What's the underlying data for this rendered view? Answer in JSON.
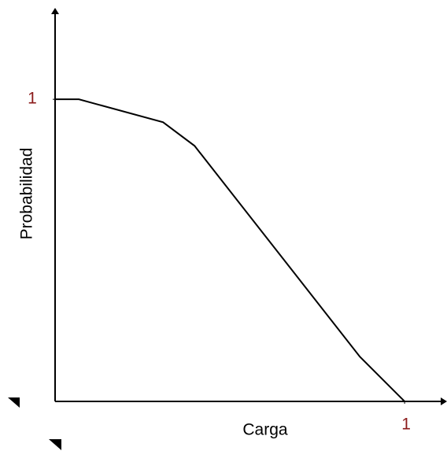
{
  "chart_data": {
    "type": "line",
    "xlabel": "Carga",
    "ylabel": "Probabilidad",
    "x": [
      0,
      0.068,
      0.309,
      0.399,
      0.872,
      1
    ],
    "series": [
      {
        "color": "#000000",
        "values": [
          1,
          1,
          0.924,
          0.846,
          0.148,
          0
        ]
      }
    ],
    "xlim": [
      0,
      1.11
    ],
    "ylim": [
      0,
      1.3
    ],
    "xticks": [
      1
    ],
    "yticks": [
      1
    ],
    "tick_color": "#8b1a1a"
  }
}
